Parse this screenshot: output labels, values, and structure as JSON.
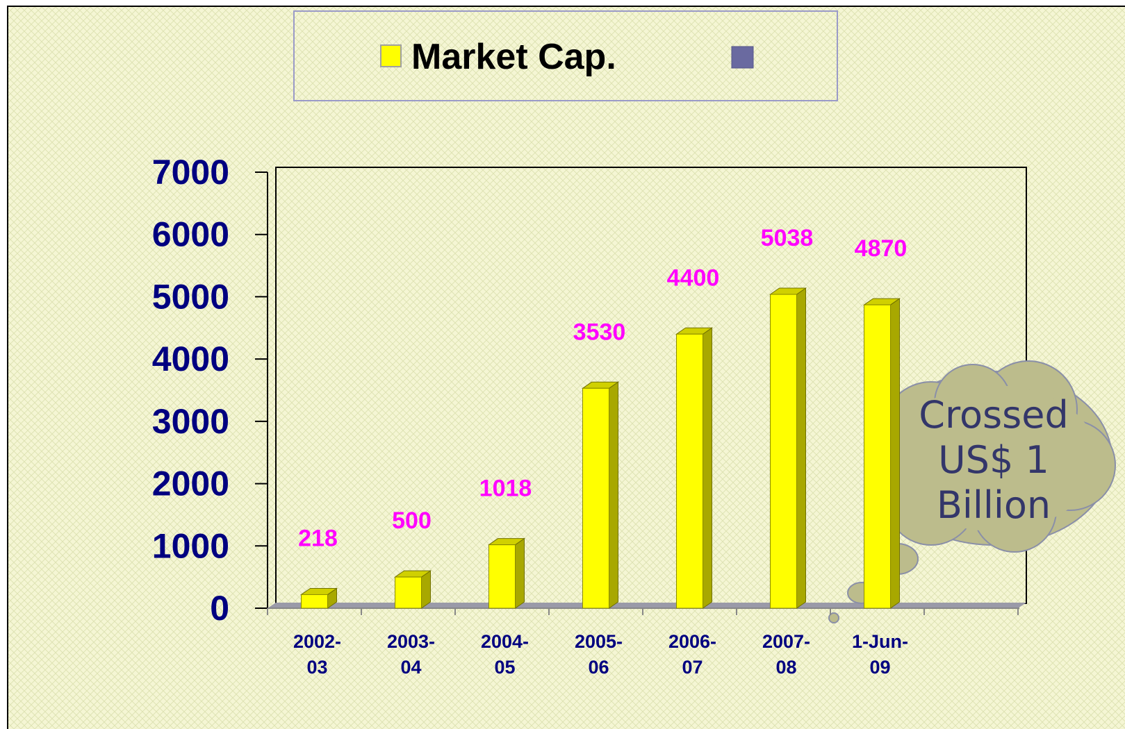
{
  "chart_data": {
    "type": "bar",
    "categories": [
      "2002-03",
      "2003-04",
      "2004-05",
      "2005-06",
      "2006-07",
      "2007-08",
      "1-Jun-09"
    ],
    "series": [
      {
        "name": "Market Cap.",
        "color": "#ffff00",
        "values": [
          218,
          500,
          1018,
          3530,
          4400,
          5038,
          4870
        ]
      }
    ],
    "ylim": [
      0,
      7000
    ],
    "yticks": [
      0,
      1000,
      2000,
      3000,
      4000,
      5000,
      6000,
      7000
    ],
    "annotation": "Crossed US$ 1 Billion"
  }
}
